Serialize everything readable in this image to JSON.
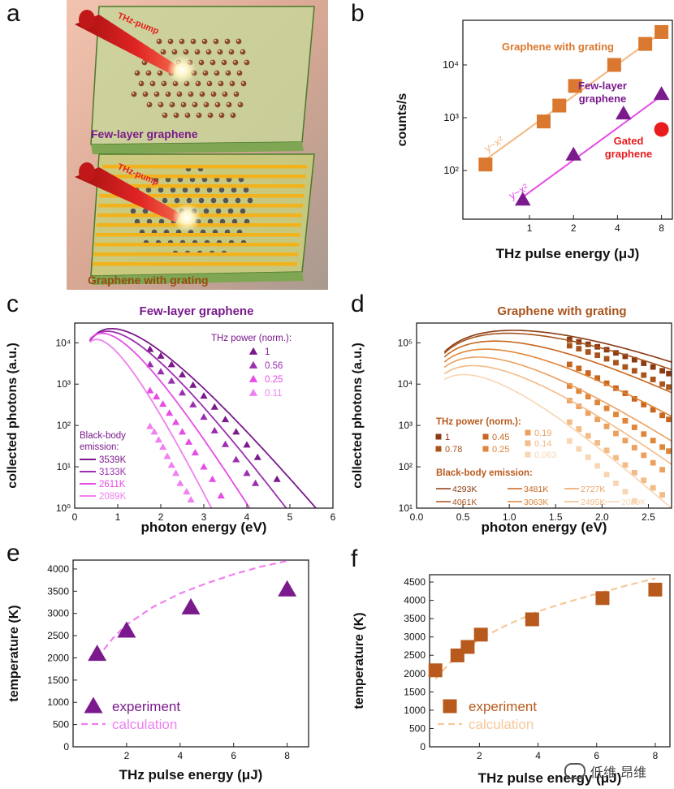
{
  "panel_labels": [
    "a",
    "b",
    "c",
    "d",
    "e",
    "f"
  ],
  "colors": {
    "purple": "#7a1a8c",
    "violet": "#9b2fb0",
    "magenta": "#e64ce6",
    "pink": "#f07ff0",
    "brown": "#a8541c",
    "orange": "#d9782e",
    "light_orange": "#f0a868",
    "peach": "#f7c89a",
    "red": "#e81c1c"
  },
  "panel_a": {
    "pump_label_top": "THz-pump",
    "pump_label_bottom": "THz-pump",
    "caption_top": "Few-layer graphene",
    "caption_bottom": "Graphene with grating"
  },
  "watermark": "低维 昂维",
  "chart_data": [
    {
      "id": "b",
      "type": "scatter",
      "title": "",
      "xlabel": "THz pulse energy (μJ)",
      "ylabel": "counts/s",
      "xscale": "log",
      "yscale": "log",
      "xlim": [
        0.35,
        9.5
      ],
      "ylim": [
        12,
        70000
      ],
      "xticks": [
        1,
        2,
        4,
        8
      ],
      "xtick_labels": [
        "1",
        "2",
        "4",
        "8"
      ],
      "yticks": [
        100,
        1000,
        10000
      ],
      "ytick_labels": [
        "10²",
        "10³",
        "10⁴"
      ],
      "series": [
        {
          "name": "Graphene with grating",
          "marker": "square",
          "color": "#d9782e",
          "x": [
            0.5,
            1.25,
            1.6,
            2.05,
            3.8,
            6.2,
            8.0
          ],
          "y": [
            130,
            850,
            1700,
            4000,
            10000,
            25000,
            42000
          ],
          "fit_label": "y~x²",
          "fit_x": [
            0.5,
            8.0
          ],
          "fit_y": [
            160,
            41000
          ]
        },
        {
          "name": "Few-layer graphene",
          "marker": "triangle",
          "color": "#7a1a8c",
          "x": [
            0.9,
            2.0,
            4.4,
            8.0
          ],
          "y": [
            28,
            200,
            1200,
            2800
          ],
          "fit_label": "y~x²",
          "fit_x": [
            0.85,
            8.0
          ],
          "fit_y": [
            28,
            2600
          ]
        },
        {
          "name": "Gated graphene",
          "marker": "circle",
          "color": "#e81c1c",
          "x": [
            8.0
          ],
          "y": [
            600
          ]
        }
      ],
      "annotations": [
        "Graphene with grating",
        "Few-layer graphene",
        "Gated graphene"
      ]
    },
    {
      "id": "c",
      "type": "line",
      "title": "Few-layer graphene",
      "xlabel": "photon energy (eV)",
      "ylabel": "collected photons (a.u.)",
      "yscale": "log",
      "xlim": [
        0,
        6
      ],
      "ylim": [
        1,
        30000
      ],
      "xticks": [
        0,
        1,
        2,
        3,
        4,
        5,
        6
      ],
      "xtick_labels": [
        "0",
        "1",
        "2",
        "3",
        "4",
        "5",
        "6"
      ],
      "yticks": [
        1,
        10,
        100,
        1000,
        10000
      ],
      "ytick_labels": [
        "10⁰",
        "10¹",
        "10²",
        "10³",
        "10⁴"
      ],
      "legend_title": "THz power (norm.):",
      "legend_power": [
        "1",
        "0.56",
        "0.25",
        "0.11"
      ],
      "legend_bb_title": "Black-body emission:",
      "legend_bb": [
        "3539K",
        "3133K",
        "2611K",
        "2089K"
      ],
      "series": [
        {
          "power": "1",
          "temperature_K": 3539,
          "color": "#7a1a8c",
          "curve_scale": 22000,
          "points_x": [
            1.75,
            2.0,
            2.25,
            2.5,
            2.75,
            3.0,
            3.25,
            3.5,
            3.75,
            4.0,
            4.25,
            4.7
          ],
          "points_y": [
            7000,
            4800,
            3000,
            1700,
            950,
            520,
            280,
            140,
            70,
            34,
            17,
            5
          ]
        },
        {
          "power": "0.56",
          "temperature_K": 3133,
          "color": "#9b2fb0",
          "curve_scale": 19000,
          "points_x": [
            1.75,
            2.0,
            2.25,
            2.5,
            2.75,
            3.0,
            3.25,
            3.5,
            3.75,
            4.0,
            4.2
          ],
          "points_y": [
            3000,
            2000,
            1200,
            620,
            320,
            160,
            75,
            35,
            15,
            7,
            4
          ]
        },
        {
          "power": "0.25",
          "temperature_K": 2611,
          "color": "#e64ce6",
          "curve_scale": 17000,
          "points_x": [
            1.75,
            1.9,
            2.05,
            2.2,
            2.35,
            2.5,
            2.65,
            2.8,
            3.0,
            3.2,
            3.4
          ],
          "points_y": [
            700,
            500,
            330,
            200,
            120,
            70,
            40,
            22,
            10,
            5,
            2
          ]
        },
        {
          "power": "0.11",
          "temperature_K": 2089,
          "color": "#f07ff0",
          "curve_scale": 12000,
          "points_x": [
            1.75,
            1.85,
            1.95,
            2.05,
            2.15,
            2.25,
            2.35,
            2.45,
            2.6,
            2.7
          ],
          "points_y": [
            95,
            70,
            45,
            30,
            18,
            11,
            7,
            4,
            2.5,
            1.6
          ]
        }
      ]
    },
    {
      "id": "d",
      "type": "line",
      "title": "Graphene with grating",
      "xlabel": "photon energy (eV)",
      "ylabel": "collected photons (a.u.)",
      "yscale": "log",
      "xlim": [
        0,
        2.75
      ],
      "ylim": [
        10,
        300000
      ],
      "xticks": [
        0,
        0.5,
        1.0,
        1.5,
        2.0,
        2.5
      ],
      "xtick_labels": [
        "0.0",
        "0.5",
        "1.0",
        "1.5",
        "2.0",
        "2.5"
      ],
      "yticks": [
        10,
        100,
        1000,
        10000,
        100000
      ],
      "ytick_labels": [
        "10¹",
        "10²",
        "10³",
        "10⁴",
        "10⁵"
      ],
      "legend_title": "THz power (norm.):",
      "legend_power": [
        "1",
        "0.78",
        "0.45",
        "0.25",
        "0.19",
        "0.14",
        "0.063"
      ],
      "legend_bb_title": "Black-body emission:",
      "legend_bb": [
        "4293K",
        "4061K",
        "3481K",
        "3063K",
        "2727K",
        "2495K",
        "2089K"
      ],
      "series": [
        {
          "power": "1",
          "temperature_K": 4293,
          "color": "#8a3a12",
          "curve_scale": 200000,
          "points_x": [
            1.65,
            1.75,
            1.85,
            1.95,
            2.05,
            2.15,
            2.25,
            2.35,
            2.45,
            2.55,
            2.65,
            2.72
          ],
          "points_y": [
            120000,
            105000,
            92000,
            80000,
            68000,
            57000,
            47000,
            39000,
            32000,
            26000,
            21000,
            18000
          ]
        },
        {
          "power": "0.78",
          "temperature_K": 4061,
          "color": "#a8541c",
          "curve_scale": 170000,
          "points_x": [
            1.65,
            1.75,
            1.85,
            1.95,
            2.05,
            2.15,
            2.25,
            2.35,
            2.45,
            2.55,
            2.65,
            2.72
          ],
          "points_y": [
            85000,
            72000,
            60000,
            50000,
            41000,
            33000,
            26000,
            21000,
            16500,
            13000,
            10000,
            8500
          ]
        },
        {
          "power": "0.45",
          "temperature_K": 3481,
          "color": "#c8651f",
          "curve_scale": 110000,
          "points_x": [
            1.65,
            1.75,
            1.85,
            1.95,
            2.05,
            2.15,
            2.25,
            2.35,
            2.45,
            2.55,
            2.65,
            2.72
          ],
          "points_y": [
            30000,
            24000,
            18500,
            14000,
            10500,
            8000,
            6000,
            4400,
            3200,
            2400,
            1750,
            1400
          ]
        },
        {
          "power": "0.25",
          "temperature_K": 3063,
          "color": "#e08638",
          "curve_scale": 70000,
          "points_x": [
            1.65,
            1.75,
            1.85,
            1.95,
            2.05,
            2.15,
            2.25,
            2.35,
            2.45,
            2.55,
            2.65,
            2.72
          ],
          "points_y": [
            9000,
            6800,
            5000,
            3600,
            2600,
            1850,
            1300,
            900,
            620,
            430,
            300,
            240
          ]
        },
        {
          "power": "0.19",
          "temperature_K": 2727,
          "color": "#eca060",
          "curve_scale": 45000,
          "points_x": [
            1.65,
            1.75,
            1.85,
            1.95,
            2.05,
            2.15,
            2.25,
            2.35,
            2.45,
            2.55,
            2.65
          ],
          "points_y": [
            4000,
            2900,
            2000,
            1400,
            950,
            640,
            430,
            290,
            190,
            125,
            85
          ]
        },
        {
          "power": "0.14",
          "temperature_K": 2495,
          "color": "#f3bb86",
          "curve_scale": 28000,
          "points_x": [
            1.65,
            1.75,
            1.85,
            1.95,
            2.05,
            2.15,
            2.25,
            2.35,
            2.45,
            2.55,
            2.65
          ],
          "points_y": [
            1200,
            820,
            560,
            380,
            250,
            165,
            110,
            72,
            47,
            31,
            21
          ]
        },
        {
          "power": "0.063",
          "temperature_K": 2089,
          "color": "#f8d6b3",
          "curve_scale": 17000,
          "points_x": [
            1.65,
            1.75,
            1.85,
            1.95,
            2.05,
            2.15,
            2.25,
            2.35
          ],
          "points_y": [
            420,
            270,
            170,
            105,
            65,
            40,
            25,
            15
          ]
        }
      ]
    },
    {
      "id": "e",
      "type": "scatter",
      "title": "",
      "xlabel": "THz pulse energy (μJ)",
      "ylabel": "temperature (K)",
      "xlim": [
        0,
        8.8
      ],
      "ylim": [
        0,
        4200
      ],
      "xticks": [
        2,
        4,
        6,
        8
      ],
      "xtick_labels": [
        "2",
        "4",
        "6",
        "8"
      ],
      "yticks": [
        0,
        500,
        1000,
        1500,
        2000,
        2500,
        3000,
        3500,
        4000
      ],
      "ytick_labels": [
        "0",
        "500",
        "1000",
        "1500",
        "2000",
        "2500",
        "3000",
        "3500",
        "4000"
      ],
      "series": [
        {
          "name": "experiment",
          "marker": "triangle",
          "color": "#7a1a8c",
          "x": [
            0.9,
            2.0,
            4.4,
            8.0
          ],
          "y": [
            2089,
            2611,
            3133,
            3539
          ]
        },
        {
          "name": "calculation",
          "style": "dashed",
          "color": "#f07ff0",
          "x": [
            0.9,
            1.5,
            2.0,
            3.0,
            4.0,
            5.0,
            6.0,
            7.0,
            8.0
          ],
          "y": [
            2000,
            2450,
            2750,
            3150,
            3450,
            3680,
            3880,
            4050,
            4180
          ]
        }
      ],
      "legend": [
        "experiment",
        "calculation"
      ]
    },
    {
      "id": "f",
      "type": "scatter",
      "title": "",
      "xlabel": "THz pulse energy (μJ)",
      "ylabel": "temperature (K)",
      "xlim": [
        0.3,
        8.5
      ],
      "ylim": [
        0,
        4700
      ],
      "xticks": [
        2,
        4,
        6,
        8
      ],
      "xtick_labels": [
        "2",
        "4",
        "6",
        "8"
      ],
      "yticks": [
        0,
        500,
        1000,
        1500,
        2000,
        2500,
        3000,
        3500,
        4000,
        4500
      ],
      "ytick_labels": [
        "0",
        "500",
        "1000",
        "1500",
        "2000",
        "2500",
        "3000",
        "3500",
        "4000",
        "4500"
      ],
      "series": [
        {
          "name": "experiment",
          "marker": "square",
          "color": "#b85a1e",
          "x": [
            0.5,
            1.25,
            1.6,
            2.05,
            3.8,
            6.2,
            8.0
          ],
          "y": [
            2089,
            2495,
            2727,
            3063,
            3481,
            4061,
            4293
          ]
        },
        {
          "name": "calculation",
          "style": "dashed",
          "color": "#f7c89a",
          "x": [
            0.5,
            1.0,
            2.0,
            3.0,
            4.0,
            5.0,
            6.0,
            7.0,
            8.0
          ],
          "y": [
            1850,
            2300,
            2950,
            3350,
            3700,
            3950,
            4180,
            4400,
            4600
          ]
        }
      ],
      "legend": [
        "experiment",
        "calculation"
      ]
    }
  ]
}
